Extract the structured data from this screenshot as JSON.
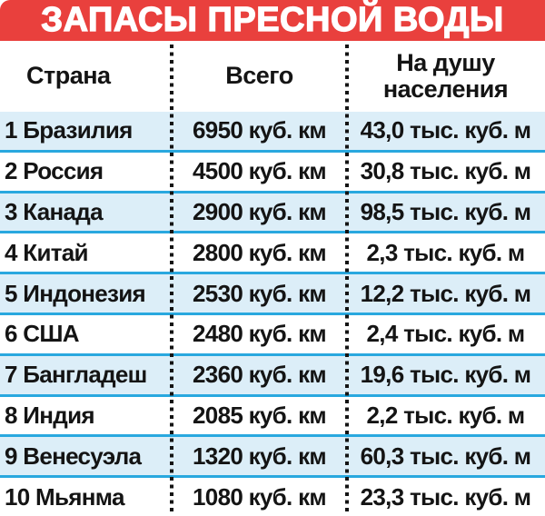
{
  "title": "ЗАПАСЫ ПРЕСНОЙ ВОДЫ",
  "headers": {
    "country": "Страна",
    "total": "Всего",
    "per_capita_line1": "На душу",
    "per_capita_line2": "населения"
  },
  "rows": [
    {
      "label": "1 Бразилия",
      "total": "6950 куб. км",
      "per": "43,0 тыс. куб. м"
    },
    {
      "label": "2 Россия",
      "total": "4500 куб. км",
      "per": "30,8 тыс. куб. м"
    },
    {
      "label": "3 Канада",
      "total": "2900 куб. км",
      "per": "98,5 тыс. куб. м"
    },
    {
      "label": "4 Китай",
      "total": "2800 куб. км",
      "per": "2,3 тыс. куб. м"
    },
    {
      "label": "5 Индонезия",
      "total": "2530 куб. км",
      "per": "12,2 тыс. куб. м"
    },
    {
      "label": "6 США",
      "total": "2480 куб. км",
      "per": "2,4 тыс. куб. м"
    },
    {
      "label": "7 Бангладеш",
      "total": "2360 куб. км",
      "per": "19,6 тыс. куб. м"
    },
    {
      "label": "8 Индия",
      "total": "2085 куб. км",
      "per": "2,2 тыс. куб. м"
    },
    {
      "label": "9 Венесуэла",
      "total": "1320 куб. км",
      "per": "60,3 тыс. куб. м"
    },
    {
      "label": "10 Мьянма",
      "total": "1080 куб. км",
      "per": "23,3 тыс. куб. м"
    }
  ],
  "colors": {
    "banner_red": "#e9403d",
    "row_light_blue": "#dceef8",
    "separator_cyan": "#29a8df",
    "divider_black": "#141414",
    "text_black": "#141414",
    "title_white": "#ffffff"
  },
  "chart_data": {
    "type": "table",
    "title": "ЗАПАСЫ ПРЕСНОЙ ВОДЫ",
    "columns": [
      "Страна",
      "Всего",
      "На душу населения"
    ],
    "categories": [
      "Бразилия",
      "Россия",
      "Канада",
      "Китай",
      "Индонезия",
      "США",
      "Бангладеш",
      "Индия",
      "Венесуэла",
      "Мьянма"
    ],
    "ranks": [
      1,
      2,
      3,
      4,
      5,
      6,
      7,
      8,
      9,
      10
    ],
    "series": [
      {
        "name": "Всего, куб. км",
        "values": [
          6950,
          4500,
          2900,
          2800,
          2530,
          2480,
          2360,
          2085,
          1320,
          1080
        ]
      },
      {
        "name": "На душу населения, тыс. куб. м",
        "values": [
          43.0,
          30.8,
          98.5,
          2.3,
          12.2,
          2.4,
          19.6,
          2.2,
          60.3,
          23.3
        ]
      }
    ],
    "units": {
      "total": "куб. км",
      "per_capita": "тыс. куб. м"
    },
    "layout": {
      "striped": true,
      "stripe_color": "#dceef8",
      "row_separator_color": "#29a8df",
      "column_dividers": "dotted"
    }
  }
}
